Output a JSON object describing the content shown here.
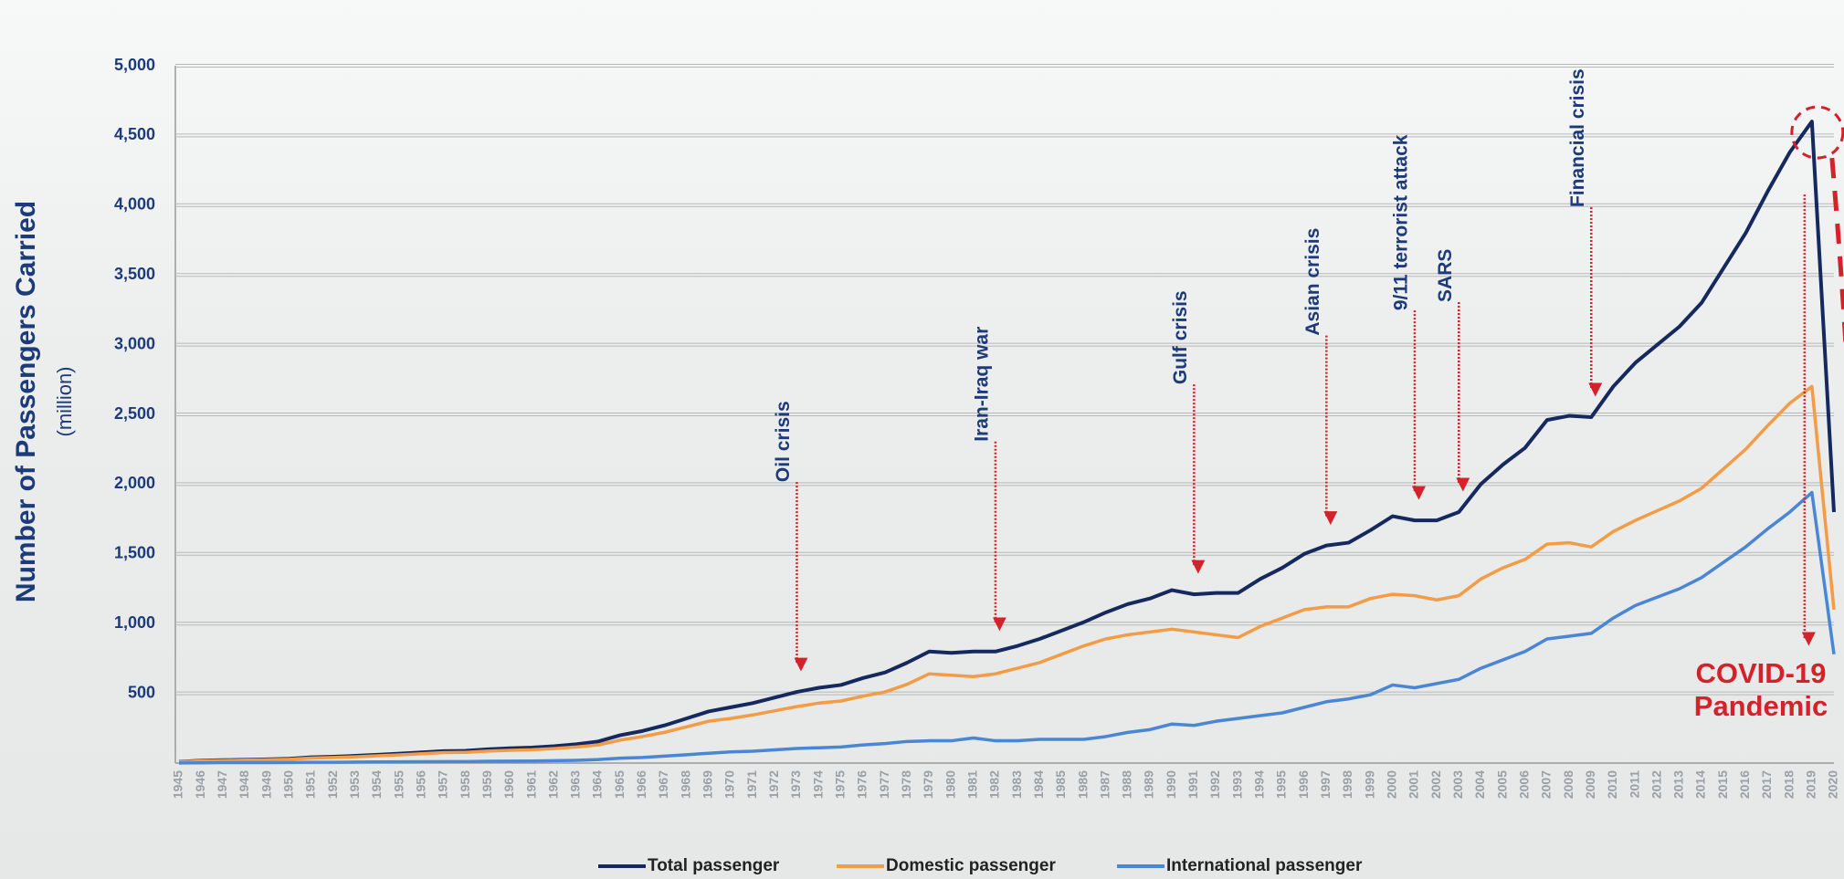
{
  "chart_data": {
    "type": "line",
    "y_label": "Number of Passengers Carried",
    "y_unit": "(million)",
    "x": [
      1945,
      1946,
      1947,
      1948,
      1949,
      1950,
      1951,
      1952,
      1953,
      1954,
      1955,
      1956,
      1957,
      1958,
      1959,
      1960,
      1961,
      1962,
      1963,
      1964,
      1965,
      1966,
      1967,
      1968,
      1969,
      1970,
      1971,
      1972,
      1973,
      1974,
      1975,
      1976,
      1977,
      1978,
      1979,
      1980,
      1981,
      1982,
      1983,
      1984,
      1985,
      1986,
      1987,
      1988,
      1989,
      1990,
      1991,
      1992,
      1993,
      1994,
      1995,
      1996,
      1997,
      1998,
      1999,
      2000,
      2001,
      2002,
      2003,
      2004,
      2005,
      2006,
      2007,
      2008,
      2009,
      2010,
      2011,
      2012,
      2013,
      2014,
      2015,
      2016,
      2017,
      2018,
      2019,
      2020
    ],
    "xlim": [
      1945,
      2020
    ],
    "ylim": [
      0,
      5000
    ],
    "yticks": [
      500,
      {
        "value": 1000,
        "label": "1,000"
      },
      {
        "value": 1500,
        "label": "1,500"
      },
      {
        "value": 2000,
        "label": "2,000"
      },
      {
        "value": 2500,
        "label": "2,500"
      },
      {
        "value": 3000,
        "label": "3,000"
      },
      {
        "value": 3500,
        "label": "3,500"
      },
      {
        "value": 4000,
        "label": "4,000"
      },
      {
        "value": 4500,
        "label": "4,500"
      },
      {
        "value": 5000,
        "label": "5,000"
      }
    ],
    "grid": true,
    "series": [
      {
        "name": "Total passenger",
        "color": "#16295f",
        "values": [
          9,
          18,
          21,
          24,
          27,
          31,
          42,
          46,
          52,
          60,
          68,
          77,
          86,
          88,
          99,
          106,
          111,
          121,
          135,
          155,
          200,
          230,
          270,
          320,
          370,
          400,
          430,
          470,
          510,
          540,
          560,
          610,
          650,
          720,
          800,
          790,
          800,
          800,
          840,
          890,
          950,
          1010,
          1080,
          1140,
          1180,
          1240,
          1210,
          1220,
          1220,
          1320,
          1400,
          1500,
          1560,
          1580,
          1670,
          1770,
          1740,
          1740,
          1800,
          2000,
          2140,
          2260,
          2460,
          2490,
          2480,
          2700,
          2870,
          3000,
          3130,
          3300,
          3550,
          3800,
          4100,
          4380,
          4600,
          1800
        ]
      },
      {
        "name": "Domestic passenger",
        "color": "#f39b45",
        "values": [
          8,
          16,
          18,
          21,
          24,
          27,
          36,
          40,
          45,
          52,
          59,
          67,
          75,
          77,
          86,
          92,
          96,
          104,
          115,
          130,
          165,
          190,
          220,
          260,
          300,
          320,
          345,
          375,
          405,
          430,
          445,
          480,
          510,
          565,
          640,
          630,
          620,
          640,
          680,
          720,
          780,
          840,
          890,
          920,
          940,
          960,
          940,
          920,
          900,
          980,
          1040,
          1100,
          1120,
          1120,
          1180,
          1210,
          1200,
          1170,
          1200,
          1320,
          1400,
          1460,
          1570,
          1580,
          1550,
          1660,
          1740,
          1810,
          1880,
          1970,
          2110,
          2250,
          2420,
          2580,
          2700,
          1100
        ]
      },
      {
        "name": "International passenger",
        "color": "#4a86d4",
        "values": [
          1,
          2,
          3,
          3,
          3,
          4,
          6,
          6,
          7,
          8,
          9,
          10,
          11,
          11,
          13,
          14,
          15,
          17,
          20,
          25,
          35,
          40,
          50,
          60,
          70,
          80,
          85,
          95,
          105,
          110,
          115,
          130,
          140,
          155,
          160,
          160,
          180,
          160,
          160,
          170,
          170,
          170,
          190,
          220,
          240,
          280,
          270,
          300,
          320,
          340,
          360,
          400,
          440,
          460,
          490,
          560,
          540,
          570,
          600,
          680,
          740,
          800,
          890,
          910,
          930,
          1040,
          1130,
          1190,
          1250,
          1330,
          1440,
          1550,
          1680,
          1800,
          1940,
          780
        ]
      }
    ],
    "annotations": [
      {
        "text": "Oil crisis",
        "x": 1973
      },
      {
        "text": "Iran-Iraq war",
        "x": 1982
      },
      {
        "text": "Gulf crisis",
        "x": 1991
      },
      {
        "text": "Asian crisis",
        "x": 1997
      },
      {
        "text": "9/11 terrorist attack",
        "x": 2001
      },
      {
        "text": "SARS",
        "x": 2003
      },
      {
        "text": "Financial crisis",
        "x": 2009
      }
    ],
    "callout": {
      "text": "COVID-19 Pandemic",
      "x": 2019
    },
    "legend": "bottom"
  }
}
